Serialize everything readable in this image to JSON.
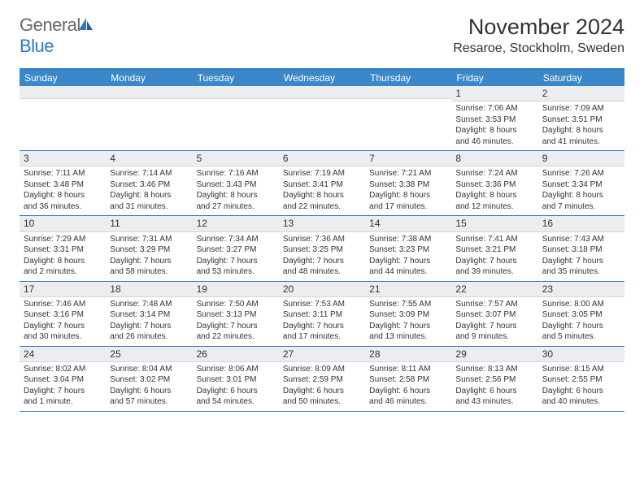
{
  "logo": {
    "general": "General",
    "blue": "Blue"
  },
  "title": "November 2024",
  "location": "Resaroe, Stockholm, Sweden",
  "day_names": [
    "Sunday",
    "Monday",
    "Tuesday",
    "Wednesday",
    "Thursday",
    "Friday",
    "Saturday"
  ],
  "colors": {
    "header_bg": "#3a87c9",
    "accent": "#2f78c2",
    "daynum_bg": "#ebedf0",
    "text": "#333333"
  },
  "weeks": [
    [
      {
        "day": "",
        "sunrise": "",
        "sunset": "",
        "daylight1": "",
        "daylight2": ""
      },
      {
        "day": "",
        "sunrise": "",
        "sunset": "",
        "daylight1": "",
        "daylight2": ""
      },
      {
        "day": "",
        "sunrise": "",
        "sunset": "",
        "daylight1": "",
        "daylight2": ""
      },
      {
        "day": "",
        "sunrise": "",
        "sunset": "",
        "daylight1": "",
        "daylight2": ""
      },
      {
        "day": "",
        "sunrise": "",
        "sunset": "",
        "daylight1": "",
        "daylight2": ""
      },
      {
        "day": "1",
        "sunrise": "Sunrise: 7:06 AM",
        "sunset": "Sunset: 3:53 PM",
        "daylight1": "Daylight: 8 hours",
        "daylight2": "and 46 minutes."
      },
      {
        "day": "2",
        "sunrise": "Sunrise: 7:09 AM",
        "sunset": "Sunset: 3:51 PM",
        "daylight1": "Daylight: 8 hours",
        "daylight2": "and 41 minutes."
      }
    ],
    [
      {
        "day": "3",
        "sunrise": "Sunrise: 7:11 AM",
        "sunset": "Sunset: 3:48 PM",
        "daylight1": "Daylight: 8 hours",
        "daylight2": "and 36 minutes."
      },
      {
        "day": "4",
        "sunrise": "Sunrise: 7:14 AM",
        "sunset": "Sunset: 3:46 PM",
        "daylight1": "Daylight: 8 hours",
        "daylight2": "and 31 minutes."
      },
      {
        "day": "5",
        "sunrise": "Sunrise: 7:16 AM",
        "sunset": "Sunset: 3:43 PM",
        "daylight1": "Daylight: 8 hours",
        "daylight2": "and 27 minutes."
      },
      {
        "day": "6",
        "sunrise": "Sunrise: 7:19 AM",
        "sunset": "Sunset: 3:41 PM",
        "daylight1": "Daylight: 8 hours",
        "daylight2": "and 22 minutes."
      },
      {
        "day": "7",
        "sunrise": "Sunrise: 7:21 AM",
        "sunset": "Sunset: 3:38 PM",
        "daylight1": "Daylight: 8 hours",
        "daylight2": "and 17 minutes."
      },
      {
        "day": "8",
        "sunrise": "Sunrise: 7:24 AM",
        "sunset": "Sunset: 3:36 PM",
        "daylight1": "Daylight: 8 hours",
        "daylight2": "and 12 minutes."
      },
      {
        "day": "9",
        "sunrise": "Sunrise: 7:26 AM",
        "sunset": "Sunset: 3:34 PM",
        "daylight1": "Daylight: 8 hours",
        "daylight2": "and 7 minutes."
      }
    ],
    [
      {
        "day": "10",
        "sunrise": "Sunrise: 7:29 AM",
        "sunset": "Sunset: 3:31 PM",
        "daylight1": "Daylight: 8 hours",
        "daylight2": "and 2 minutes."
      },
      {
        "day": "11",
        "sunrise": "Sunrise: 7:31 AM",
        "sunset": "Sunset: 3:29 PM",
        "daylight1": "Daylight: 7 hours",
        "daylight2": "and 58 minutes."
      },
      {
        "day": "12",
        "sunrise": "Sunrise: 7:34 AM",
        "sunset": "Sunset: 3:27 PM",
        "daylight1": "Daylight: 7 hours",
        "daylight2": "and 53 minutes."
      },
      {
        "day": "13",
        "sunrise": "Sunrise: 7:36 AM",
        "sunset": "Sunset: 3:25 PM",
        "daylight1": "Daylight: 7 hours",
        "daylight2": "and 48 minutes."
      },
      {
        "day": "14",
        "sunrise": "Sunrise: 7:38 AM",
        "sunset": "Sunset: 3:23 PM",
        "daylight1": "Daylight: 7 hours",
        "daylight2": "and 44 minutes."
      },
      {
        "day": "15",
        "sunrise": "Sunrise: 7:41 AM",
        "sunset": "Sunset: 3:21 PM",
        "daylight1": "Daylight: 7 hours",
        "daylight2": "and 39 minutes."
      },
      {
        "day": "16",
        "sunrise": "Sunrise: 7:43 AM",
        "sunset": "Sunset: 3:18 PM",
        "daylight1": "Daylight: 7 hours",
        "daylight2": "and 35 minutes."
      }
    ],
    [
      {
        "day": "17",
        "sunrise": "Sunrise: 7:46 AM",
        "sunset": "Sunset: 3:16 PM",
        "daylight1": "Daylight: 7 hours",
        "daylight2": "and 30 minutes."
      },
      {
        "day": "18",
        "sunrise": "Sunrise: 7:48 AM",
        "sunset": "Sunset: 3:14 PM",
        "daylight1": "Daylight: 7 hours",
        "daylight2": "and 26 minutes."
      },
      {
        "day": "19",
        "sunrise": "Sunrise: 7:50 AM",
        "sunset": "Sunset: 3:13 PM",
        "daylight1": "Daylight: 7 hours",
        "daylight2": "and 22 minutes."
      },
      {
        "day": "20",
        "sunrise": "Sunrise: 7:53 AM",
        "sunset": "Sunset: 3:11 PM",
        "daylight1": "Daylight: 7 hours",
        "daylight2": "and 17 minutes."
      },
      {
        "day": "21",
        "sunrise": "Sunrise: 7:55 AM",
        "sunset": "Sunset: 3:09 PM",
        "daylight1": "Daylight: 7 hours",
        "daylight2": "and 13 minutes."
      },
      {
        "day": "22",
        "sunrise": "Sunrise: 7:57 AM",
        "sunset": "Sunset: 3:07 PM",
        "daylight1": "Daylight: 7 hours",
        "daylight2": "and 9 minutes."
      },
      {
        "day": "23",
        "sunrise": "Sunrise: 8:00 AM",
        "sunset": "Sunset: 3:05 PM",
        "daylight1": "Daylight: 7 hours",
        "daylight2": "and 5 minutes."
      }
    ],
    [
      {
        "day": "24",
        "sunrise": "Sunrise: 8:02 AM",
        "sunset": "Sunset: 3:04 PM",
        "daylight1": "Daylight: 7 hours",
        "daylight2": "and 1 minute."
      },
      {
        "day": "25",
        "sunrise": "Sunrise: 8:04 AM",
        "sunset": "Sunset: 3:02 PM",
        "daylight1": "Daylight: 6 hours",
        "daylight2": "and 57 minutes."
      },
      {
        "day": "26",
        "sunrise": "Sunrise: 8:06 AM",
        "sunset": "Sunset: 3:01 PM",
        "daylight1": "Daylight: 6 hours",
        "daylight2": "and 54 minutes."
      },
      {
        "day": "27",
        "sunrise": "Sunrise: 8:09 AM",
        "sunset": "Sunset: 2:59 PM",
        "daylight1": "Daylight: 6 hours",
        "daylight2": "and 50 minutes."
      },
      {
        "day": "28",
        "sunrise": "Sunrise: 8:11 AM",
        "sunset": "Sunset: 2:58 PM",
        "daylight1": "Daylight: 6 hours",
        "daylight2": "and 46 minutes."
      },
      {
        "day": "29",
        "sunrise": "Sunrise: 8:13 AM",
        "sunset": "Sunset: 2:56 PM",
        "daylight1": "Daylight: 6 hours",
        "daylight2": "and 43 minutes."
      },
      {
        "day": "30",
        "sunrise": "Sunrise: 8:15 AM",
        "sunset": "Sunset: 2:55 PM",
        "daylight1": "Daylight: 6 hours",
        "daylight2": "and 40 minutes."
      }
    ]
  ]
}
